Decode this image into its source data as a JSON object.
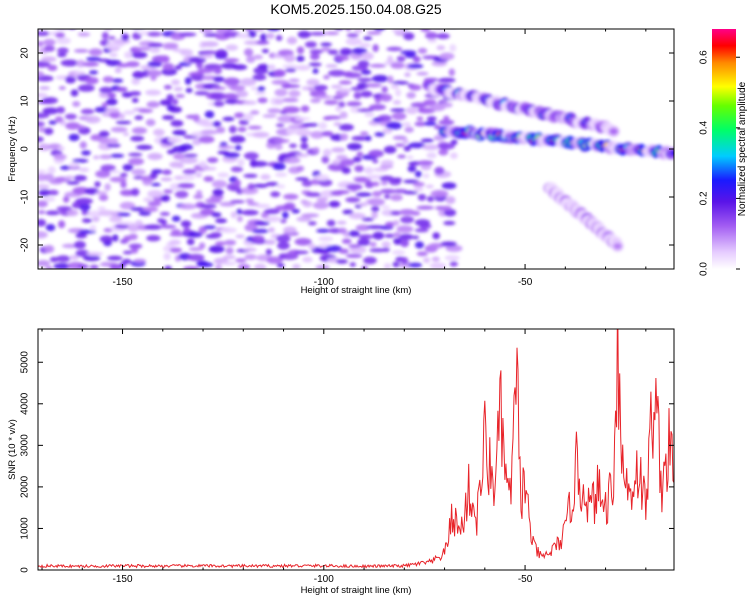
{
  "title": "KOM5.2025.150.04.08.G25",
  "colors": {
    "snr_line": "#e8242a",
    "axis": "#000000",
    "background": "#ffffff"
  },
  "chart_data": [
    {
      "type": "heatmap",
      "title": "KOM5.2025.150.04.08.G25",
      "xlabel": "Height of straight line (km)",
      "ylabel": "Frequency (Hz)",
      "xlim": [
        -171,
        -13
      ],
      "ylim": [
        -25,
        25
      ],
      "x_ticks": [
        -150,
        -100,
        -50
      ],
      "y_ticks": [
        -20,
        -10,
        0,
        10,
        20
      ],
      "colorbar": {
        "label": "Normalized spectral amplitude",
        "range": [
          0.0,
          0.68
        ],
        "ticks": [
          0.0,
          0.2,
          0.4,
          0.6
        ],
        "tick_labels": [
          "0.0",
          "0.2",
          "0.4",
          "0.6"
        ],
        "colormap": "rainbow (white-violet-blue-cyan-green-yellow-red-magenta)"
      },
      "features": [
        {
          "name": "main_track",
          "x_start": -70,
          "x_end": -13,
          "freq_start": 4,
          "freq_end": -1,
          "peak_amplitude": 0.68
        },
        {
          "name": "upper_track",
          "x_start": -74,
          "x_end": -28,
          "freq_start": 13,
          "freq_end": 4,
          "peak_amplitude": 0.35
        },
        {
          "name": "lower_track",
          "x_start": -44,
          "x_end": -27,
          "freq_start": -8,
          "freq_end": -20,
          "peak_amplitude": 0.2
        }
      ],
      "noise_region": {
        "x_start": -171,
        "x_end": -70,
        "typical_amplitude": 0.12
      }
    },
    {
      "type": "line",
      "xlabel": "Height of straight line (km)",
      "ylabel": "SNR (10 * v/v)",
      "xlim": [
        -171,
        -13
      ],
      "ylim": [
        0,
        5800
      ],
      "x_ticks": [
        -150,
        -100,
        -50
      ],
      "y_ticks": [
        0,
        1000,
        2000,
        3000,
        4000,
        5000
      ],
      "series": [
        {
          "x": [
            -171,
            -160,
            -150,
            -140,
            -130,
            -120,
            -110,
            -100,
            -90,
            -80,
            -73,
            -70,
            -68,
            -66,
            -64,
            -62,
            -60,
            -58,
            -56,
            -54,
            -52,
            -51,
            -50,
            -49,
            -48,
            -46,
            -44,
            -42,
            -40,
            -38,
            -37,
            -36,
            -35,
            -34,
            -32,
            -30,
            -28,
            -27,
            -26,
            -24,
            -22,
            -20,
            -18,
            -16,
            -14,
            -13
          ],
          "values": [
            100,
            90,
            100,
            95,
            100,
            95,
            100,
            100,
            90,
            100,
            200,
            400,
            1300,
            900,
            1900,
            1200,
            3100,
            2000,
            3600,
            1500,
            4300,
            1800,
            2100,
            1200,
            600,
            300,
            400,
            600,
            900,
            2000,
            2600,
            1800,
            2100,
            1400,
            1900,
            1500,
            2300,
            5800,
            2600,
            1800,
            2500,
            1500,
            4400,
            2100,
            3000,
            2100
          ]
        }
      ]
    }
  ]
}
